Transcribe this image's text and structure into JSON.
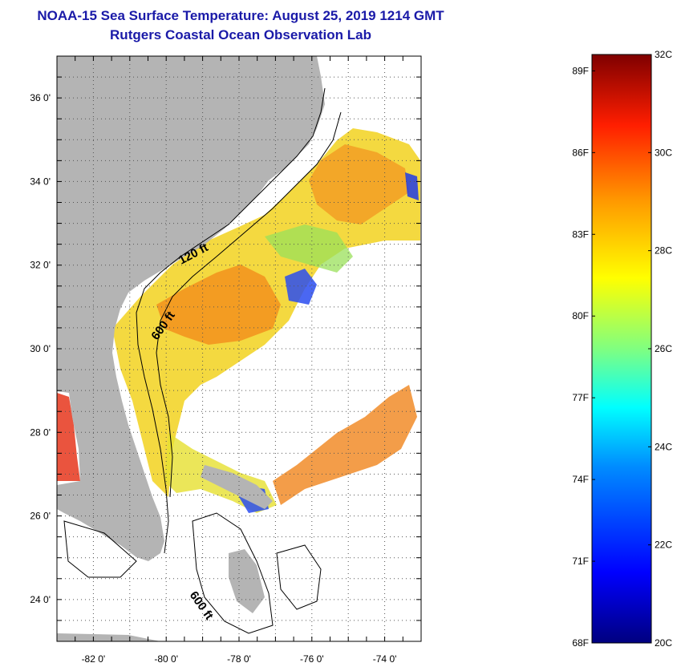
{
  "title": {
    "line1": "NOAA-15 Sea Surface Temperature:  August 25, 2019 1214 GMT",
    "line2": "Rutgers Coastal Ocean Observation Lab"
  },
  "map": {
    "lat_ticks": [
      {
        "lat": 36,
        "label": "36 0'"
      },
      {
        "lat": 34,
        "label": "34 0'"
      },
      {
        "lat": 32,
        "label": "32 0'"
      },
      {
        "lat": 30,
        "label": "30 0'"
      },
      {
        "lat": 28,
        "label": "28 0'"
      },
      {
        "lat": 26,
        "label": "26 0'"
      },
      {
        "lat": 24,
        "label": "24 0'"
      }
    ],
    "lon_ticks": [
      {
        "lon": -82,
        "label": "-82 0'"
      },
      {
        "lon": -80,
        "label": "-80 0'"
      },
      {
        "lon": -78,
        "label": "-78 0'"
      },
      {
        "lon": -76,
        "label": "-76 0'"
      },
      {
        "lon": -74,
        "label": "-74 0'"
      }
    ],
    "lon_range": [
      -83,
      -73
    ],
    "lat_range": [
      23,
      37
    ],
    "contour_labels": [
      "120 ft",
      "600 ft",
      "600 ft"
    ],
    "land_color": "#b4b4b4"
  },
  "colorbar": {
    "fahrenheit_labels": [
      "89F",
      "86F",
      "83F",
      "80F",
      "77F",
      "74F",
      "71F",
      "68F"
    ],
    "celsius_labels": [
      "32C",
      "30C",
      "28C",
      "26C",
      "24C",
      "22C",
      "20C"
    ],
    "min_c": 20,
    "max_c": 32
  }
}
